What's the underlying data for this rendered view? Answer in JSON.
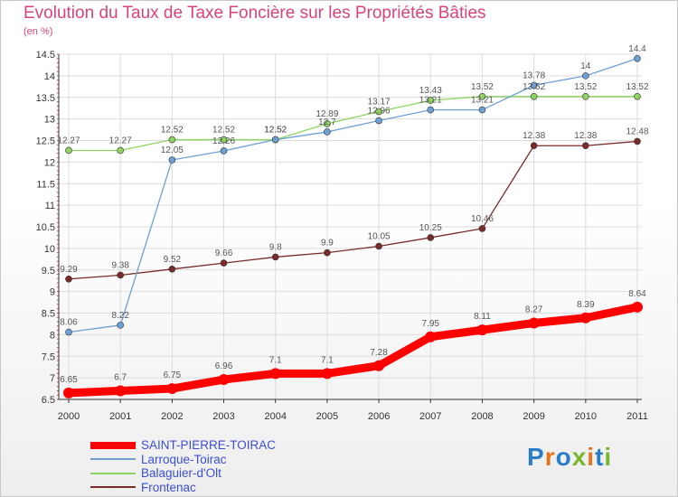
{
  "header": {
    "title": "Evolution du Taux de Taxe Foncière sur les Propriétés Bâties",
    "unit": "(en %)"
  },
  "logo": {
    "text": "Proxiti",
    "colors": [
      "#2b7dc8",
      "#e8731f",
      "#2b7dc8",
      "#7ab62e",
      "#e8731f",
      "#2b7dc8",
      "#7ab62e"
    ]
  },
  "chart_data": {
    "type": "line",
    "x": [
      "2000",
      "2001",
      "2002",
      "2003",
      "2004",
      "2005",
      "2006",
      "2007",
      "2008",
      "2009",
      "2010",
      "2011"
    ],
    "ylim": [
      6.5,
      14.5
    ],
    "yticks": [
      "6.5",
      "7",
      "7.5",
      "8",
      "8.5",
      "9",
      "9.5",
      "10",
      "10.5",
      "11",
      "11.5",
      "12",
      "12.5",
      "13",
      "13.5",
      "14",
      "14.5"
    ],
    "grid": true,
    "legend_position": "bottom-left",
    "series": [
      {
        "name": "SAINT-PIERRE-TOIRAC",
        "color": "#ff0000",
        "values": [
          6.65,
          6.7,
          6.75,
          6.96,
          7.1,
          7.1,
          7.28,
          7.95,
          8.11,
          8.27,
          8.39,
          8.64
        ],
        "labels": [
          "6.65",
          "6.7",
          "6.75",
          "6.96",
          "7.1",
          "7.1",
          "7.28",
          "7.95",
          "8.11",
          "8.27",
          "8.39",
          "8.64"
        ]
      },
      {
        "name": "Larroque-Toirac",
        "color": "#6ea0d4",
        "values": [
          8.06,
          8.22,
          12.05,
          12.26,
          12.52,
          12.7,
          12.96,
          13.21,
          13.21,
          13.78,
          14,
          14.4
        ],
        "labels": [
          "8.06",
          "8.22",
          "12.05",
          "12.26",
          "12.52",
          "12.7",
          "12.96",
          "13.21",
          "13.21",
          "13.78",
          "14",
          "14.4"
        ]
      },
      {
        "name": "Balaguier-d'Olt",
        "color": "#8fd460",
        "values": [
          12.27,
          12.27,
          12.52,
          12.52,
          12.52,
          12.89,
          13.17,
          13.43,
          13.52,
          13.52,
          13.52,
          13.52
        ],
        "labels": [
          "12.27",
          "12.27",
          "12.52",
          "12.52",
          "12.52",
          "12.89",
          "13.17",
          "13.43",
          "13.52",
          "13.52",
          "13.52",
          "13.52"
        ]
      },
      {
        "name": "Frontenac",
        "color": "#7a2a2a",
        "values": [
          9.29,
          9.38,
          9.52,
          9.66,
          9.8,
          9.9,
          10.05,
          10.25,
          10.46,
          12.38,
          12.38,
          12.48
        ],
        "labels": [
          "9.29",
          "9.38",
          "9.52",
          "9.66",
          "9.8",
          "9.9",
          "10.05",
          "10.25",
          "10.46",
          "12.38",
          "12.38",
          "12.48"
        ]
      }
    ]
  }
}
